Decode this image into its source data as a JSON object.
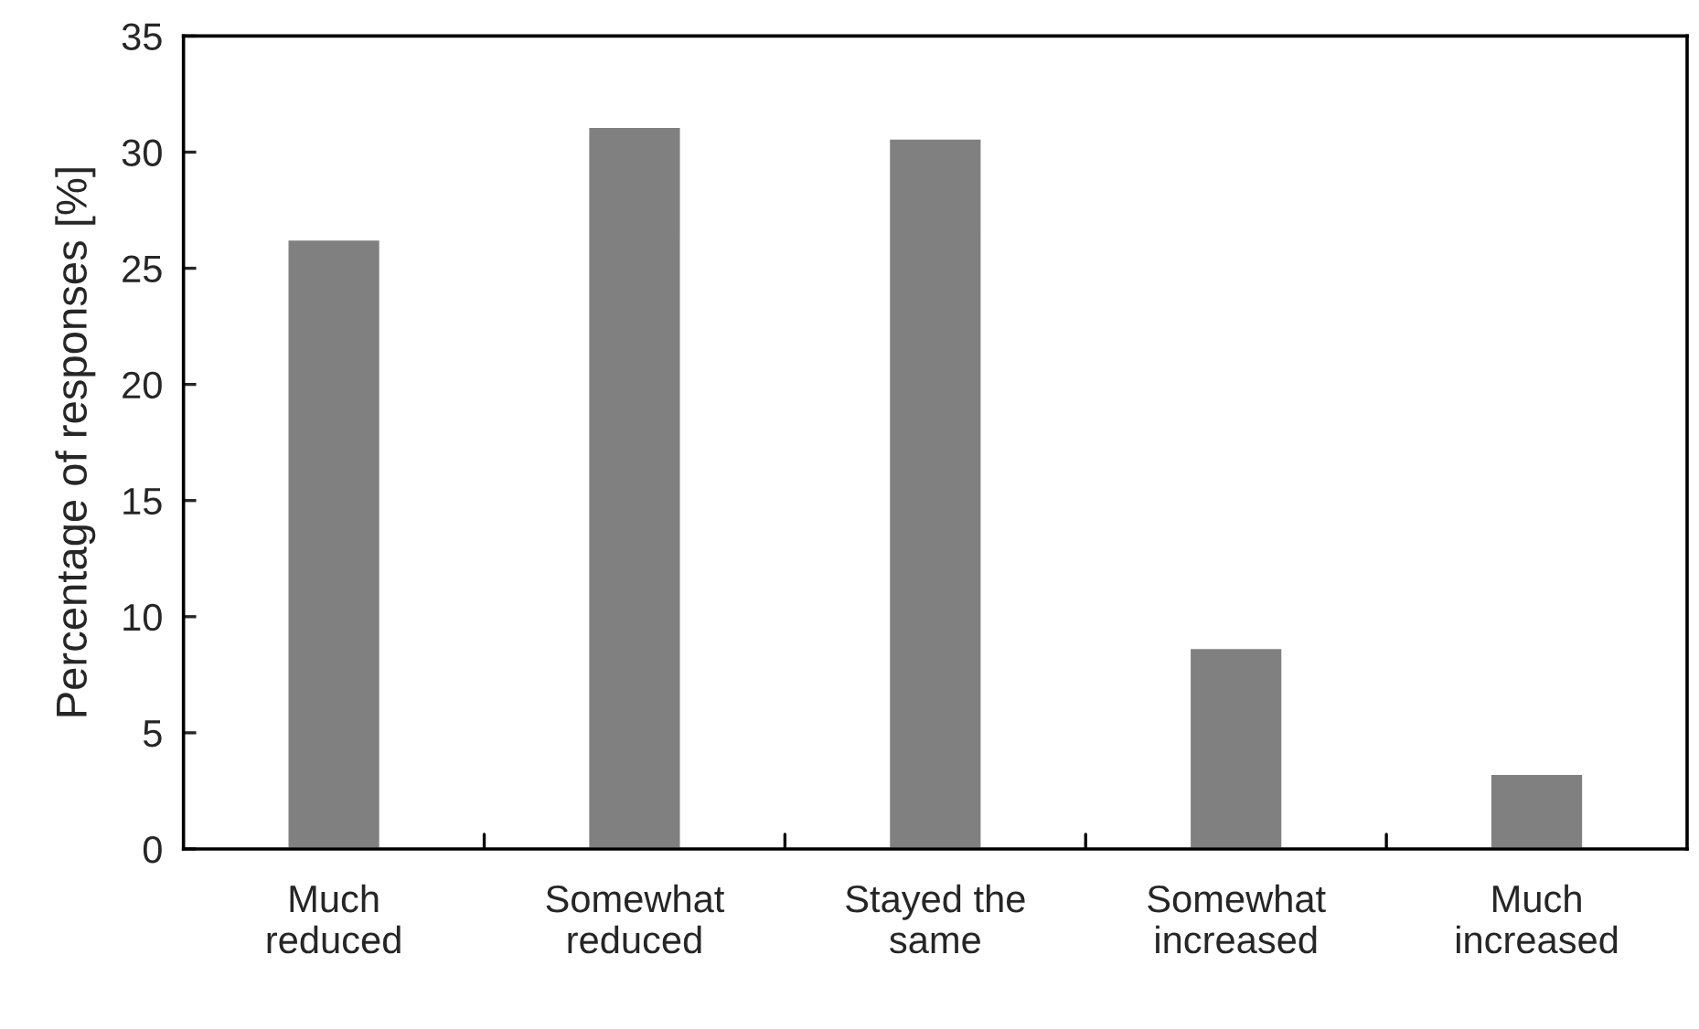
{
  "chart_data": {
    "type": "bar",
    "ylabel": "Percentage of responses [%]",
    "categories": [
      "Much\nreduced",
      "Somewhat\nreduced",
      "Stayed the\nsame",
      "Somewhat\nincreased",
      "Much\nincreased"
    ],
    "values": [
      26.25,
      31.1,
      30.6,
      8.66,
      3.24
    ],
    "color": "#808080",
    "ylim": [
      0,
      35
    ],
    "yticks": [
      0,
      5,
      10,
      15,
      20,
      25,
      30,
      35
    ],
    "grid": false,
    "legend": false
  }
}
